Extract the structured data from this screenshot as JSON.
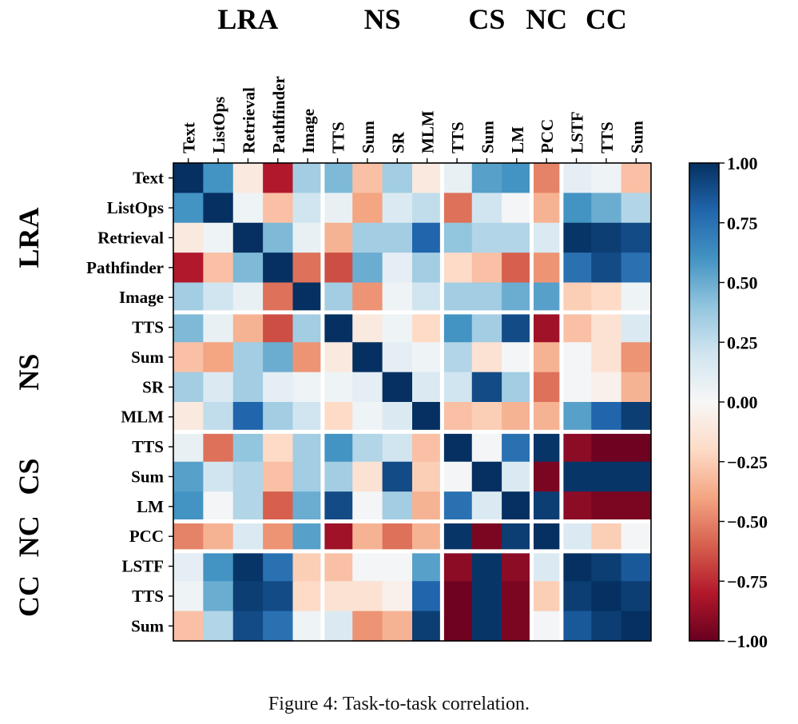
{
  "caption": "Figure 4: Task-to-task correlation.",
  "chart_data": {
    "type": "heatmap",
    "title": "",
    "labels": [
      "Text",
      "ListOps",
      "Retrieval",
      "Pathfinder",
      "Image",
      "TTS",
      "Sum",
      "SR",
      "MLM",
      "TTS",
      "Sum",
      "LM",
      "PCC",
      "LSTF",
      "TTS",
      "Sum"
    ],
    "groups": [
      {
        "name": "LRA",
        "start": 0,
        "end": 4
      },
      {
        "name": "NS",
        "start": 5,
        "end": 8
      },
      {
        "name": "CS",
        "start": 9,
        "end": 11
      },
      {
        "name": "NC",
        "start": 12,
        "end": 12
      },
      {
        "name": "CC",
        "start": 13,
        "end": 15
      }
    ],
    "colorbar": {
      "min": -1.0,
      "max": 1.0,
      "ticks": [
        "1.00",
        "0.75",
        "0.50",
        "0.25",
        "0.00",
        "−0.25",
        "−0.50",
        "−0.75",
        "−1.00"
      ],
      "tick_values": [
        1.0,
        0.75,
        0.5,
        0.25,
        0.0,
        -0.25,
        -0.5,
        -0.75,
        -1.0
      ],
      "colormap": "RdBu",
      "stops": [
        "#67001f",
        "#b2182b",
        "#d6604d",
        "#f4a582",
        "#fddbc7",
        "#f7f7f7",
        "#d1e5f0",
        "#92c5de",
        "#4393c3",
        "#2166ac",
        "#053061"
      ]
    },
    "matrix": [
      [
        1.0,
        0.6,
        -0.1,
        -0.8,
        0.35,
        0.45,
        -0.3,
        0.35,
        -0.1,
        0.08,
        0.55,
        0.6,
        -0.5,
        0.1,
        0.05,
        -0.3
      ],
      [
        0.6,
        1.0,
        0.05,
        -0.3,
        0.2,
        0.08,
        -0.4,
        0.15,
        0.25,
        -0.55,
        0.2,
        0.02,
        -0.35,
        0.6,
        0.5,
        0.3
      ],
      [
        -0.1,
        0.05,
        1.0,
        0.45,
        0.08,
        -0.35,
        0.35,
        0.35,
        0.8,
        0.4,
        0.3,
        0.3,
        0.15,
        0.98,
        0.95,
        0.9
      ],
      [
        -0.8,
        -0.3,
        0.45,
        1.0,
        -0.55,
        -0.65,
        0.5,
        0.1,
        0.35,
        -0.2,
        -0.3,
        -0.6,
        -0.45,
        0.75,
        0.9,
        0.75
      ],
      [
        0.35,
        0.2,
        0.08,
        -0.55,
        1.0,
        0.35,
        -0.45,
        0.05,
        0.2,
        0.35,
        0.35,
        0.5,
        0.55,
        -0.25,
        -0.2,
        0.05
      ],
      [
        0.45,
        0.08,
        -0.35,
        -0.65,
        0.35,
        1.0,
        -0.1,
        0.05,
        -0.2,
        0.6,
        0.35,
        0.9,
        -0.85,
        -0.3,
        -0.15,
        0.15
      ],
      [
        -0.3,
        -0.4,
        0.35,
        0.5,
        -0.45,
        -0.1,
        1.0,
        0.1,
        0.05,
        0.3,
        -0.15,
        0.02,
        -0.35,
        0.02,
        -0.15,
        -0.45
      ],
      [
        0.35,
        0.15,
        0.35,
        0.1,
        0.05,
        0.05,
        0.1,
        1.0,
        0.15,
        0.2,
        0.9,
        0.35,
        -0.55,
        0.02,
        -0.05,
        -0.35
      ],
      [
        -0.1,
        0.25,
        0.8,
        0.35,
        0.2,
        -0.2,
        0.05,
        0.15,
        1.0,
        -0.3,
        -0.25,
        -0.35,
        -0.35,
        0.55,
        0.8,
        0.95
      ],
      [
        0.08,
        -0.55,
        0.4,
        -0.2,
        0.35,
        0.6,
        0.3,
        0.2,
        -0.3,
        1.0,
        0.02,
        0.75,
        0.98,
        -0.9,
        -0.98,
        -0.98
      ],
      [
        0.55,
        0.2,
        0.3,
        -0.3,
        0.35,
        0.35,
        -0.15,
        0.9,
        -0.25,
        0.02,
        1.0,
        0.15,
        -0.95,
        0.98,
        0.98,
        0.98
      ],
      [
        0.6,
        0.02,
        0.3,
        -0.6,
        0.5,
        0.9,
        0.02,
        0.35,
        -0.35,
        0.75,
        0.15,
        1.0,
        0.95,
        -0.9,
        -0.95,
        -0.95
      ],
      [
        -0.5,
        -0.35,
        0.15,
        -0.45,
        0.55,
        -0.85,
        -0.35,
        -0.55,
        -0.35,
        0.98,
        -0.95,
        0.95,
        1.0,
        0.15,
        -0.25,
        0.02
      ],
      [
        0.1,
        0.6,
        0.98,
        0.75,
        -0.25,
        -0.3,
        0.02,
        0.02,
        0.55,
        -0.9,
        0.98,
        -0.9,
        0.15,
        1.0,
        0.95,
        0.85
      ],
      [
        0.05,
        0.5,
        0.95,
        0.9,
        -0.2,
        -0.15,
        -0.15,
        -0.05,
        0.8,
        -0.98,
        0.98,
        -0.95,
        -0.25,
        0.95,
        1.0,
        0.95
      ],
      [
        -0.3,
        0.3,
        0.9,
        0.75,
        0.05,
        0.15,
        -0.45,
        -0.35,
        0.95,
        -0.98,
        0.98,
        -0.95,
        0.02,
        0.85,
        0.95,
        1.0
      ]
    ]
  }
}
